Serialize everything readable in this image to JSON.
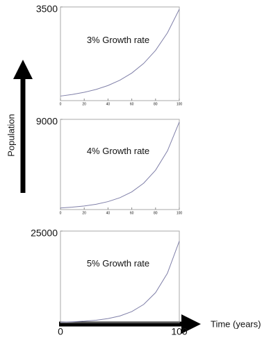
{
  "chart_data": [
    {
      "type": "line",
      "annotation": "3% Growth rate",
      "x": [
        0,
        10,
        20,
        30,
        40,
        50,
        60,
        70,
        80,
        90,
        100
      ],
      "series": [
        {
          "color": "#7f7fa8",
          "values": [
            170,
            229,
            310,
            418,
            564,
            762,
            1029,
            1389,
            1875,
            2531,
            3415
          ]
        }
      ],
      "xlim": [
        0,
        100
      ],
      "xticks": [
        0,
        20,
        40,
        60,
        80,
        100
      ],
      "ylim": [
        0,
        3500
      ],
      "yticks": [
        3500
      ]
    },
    {
      "type": "line",
      "annotation": "4% Growth rate",
      "ylabel": "Population",
      "x": [
        0,
        10,
        20,
        30,
        40,
        50,
        60,
        70,
        80,
        90,
        100
      ],
      "series": [
        {
          "color": "#7f7fa8",
          "values": [
            160,
            239,
            356,
            531,
            792,
            1182,
            1764,
            2631,
            3925,
            5856,
            8736
          ]
        }
      ],
      "xlim": [
        0,
        100
      ],
      "xticks": [
        0,
        20,
        40,
        60,
        80,
        100
      ],
      "ylim": [
        0,
        9000
      ],
      "yticks": [
        9000
      ]
    },
    {
      "type": "line",
      "annotation": "5% Growth rate",
      "xlabel": "Time (years)",
      "x": [
        0,
        10,
        20,
        30,
        40,
        50,
        60,
        70,
        80,
        90,
        100
      ],
      "series": [
        {
          "color": "#7f7fa8",
          "values": [
            150,
            247,
            408,
            672,
            1108,
            1827,
            3013,
            4966,
            8188,
            13500,
            22262
          ]
        }
      ],
      "xlim": [
        0,
        100
      ],
      "xticks": [
        0,
        100
      ],
      "ylim": [
        0,
        25000
      ],
      "yticks": [
        25000
      ]
    }
  ]
}
